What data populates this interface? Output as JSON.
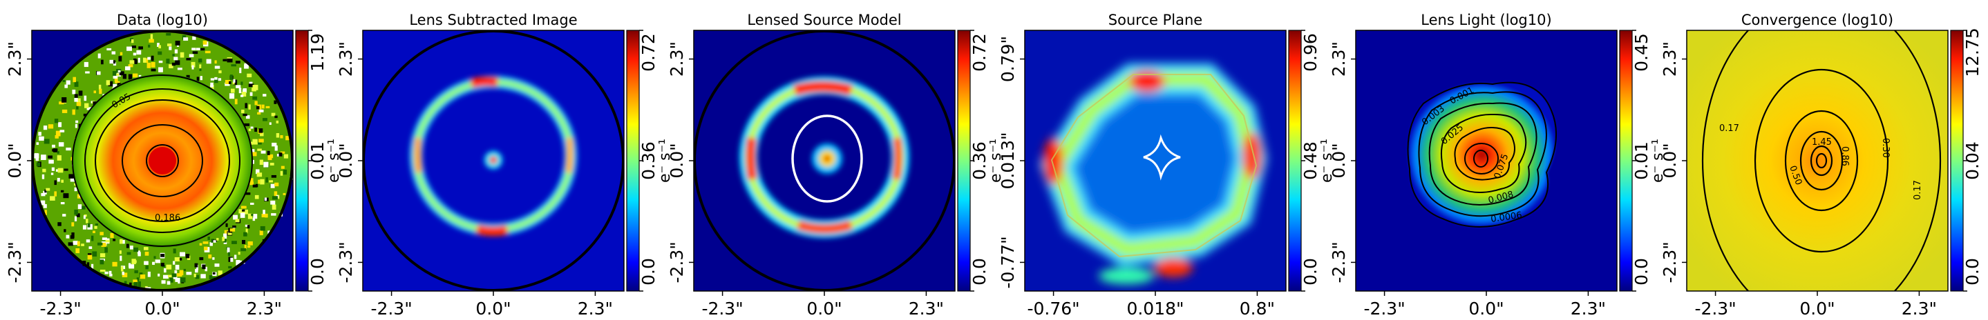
{
  "chart_data": [
    {
      "type": "heatmap",
      "title": "Data (log10)",
      "x_ticks": [
        "-2.3\"",
        "0.0\"",
        "2.3\""
      ],
      "y_ticks": [
        "-2.3\"",
        "0.0\"",
        "2.3\""
      ],
      "colorbar": {
        "ticks": [
          "0.0",
          "0.01",
          "1.19"
        ],
        "label": "e⁻ s⁻¹",
        "range": [
          0,
          1.19
        ]
      },
      "contour_labels": [
        "0.186",
        "0.05"
      ],
      "description_kind": "ring_with_noise"
    },
    {
      "type": "heatmap",
      "title": "Lens Subtracted Image",
      "x_ticks": [
        "-2.3\"",
        "0.0\"",
        "2.3\""
      ],
      "y_ticks": [
        "-2.3\"",
        "0.0\"",
        "2.3\""
      ],
      "colorbar": {
        "ticks": [
          "0.0",
          "0.36",
          "0.72"
        ],
        "label": "e⁻ s⁻¹",
        "range": [
          0,
          0.72
        ]
      }
    },
    {
      "type": "heatmap",
      "title": "Lensed Source Model",
      "x_ticks": [
        "-2.3\"",
        "0.0\"",
        "2.3\""
      ],
      "y_ticks": [
        "-2.3\"",
        "0.0\"",
        "2.3\""
      ],
      "colorbar": {
        "ticks": [
          "0.0",
          "0.36",
          "0.72"
        ],
        "label": "e⁻ s⁻¹",
        "range": [
          0,
          0.72
        ]
      }
    },
    {
      "type": "heatmap",
      "title": "Source Plane",
      "x_ticks": [
        "-0.76\"",
        "0.018\"",
        "0.8\""
      ],
      "y_ticks": [
        "-0.77\"",
        "0.013\"",
        "0.79\""
      ],
      "colorbar": {
        "ticks": [
          "0.0",
          "0.48",
          "0.96"
        ],
        "label": "e⁻ s⁻¹",
        "range": [
          0,
          0.96
        ]
      }
    },
    {
      "type": "heatmap",
      "title": "Lens Light (log10)",
      "x_ticks": [
        "-2.3\"",
        "0.0\"",
        "2.3\""
      ],
      "y_ticks": [
        "-2.3\"",
        "0.0\"",
        "2.3\""
      ],
      "colorbar": {
        "ticks": [
          "0.0",
          "0.01",
          "0.45"
        ],
        "label": "e⁻ s⁻¹",
        "range": [
          0,
          0.45
        ]
      },
      "contour_labels": [
        "0.075",
        "0.025",
        "0.008",
        "0.003",
        "0.001",
        "0.0006"
      ]
    },
    {
      "type": "heatmap",
      "title": "Convergence (log10)",
      "x_ticks": [
        "-2.3\"",
        "0.0\"",
        "2.3\""
      ],
      "y_ticks": [
        "-2.3\"",
        "0.0\"",
        "2.3\""
      ],
      "colorbar": {
        "ticks": [
          "0.0",
          "0.04",
          "12.75"
        ],
        "label": "",
        "range": [
          0,
          12.75
        ]
      },
      "contour_labels": [
        "0.17",
        "0.30",
        "0.50",
        "0.86",
        "1.45",
        "0.17"
      ]
    }
  ],
  "colors": {
    "jet": [
      "#00007f",
      "#0000ff",
      "#007fff",
      "#00ffff",
      "#7fff7f",
      "#ffff00",
      "#ff7f00",
      "#ff0000",
      "#7f0000"
    ],
    "critical_curve": "#ffffff",
    "caustic": "#ffffff",
    "contour": "#000000",
    "border_ring": "#000000"
  }
}
